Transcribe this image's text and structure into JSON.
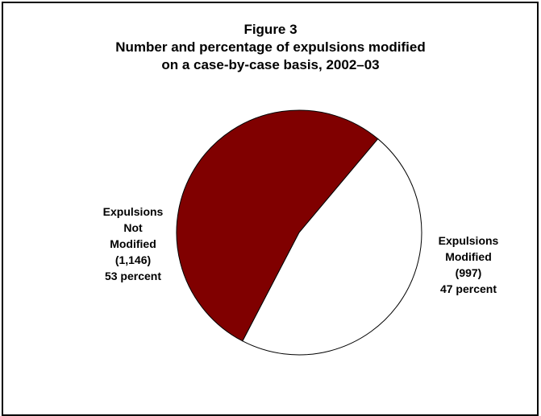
{
  "chart_data": {
    "type": "pie",
    "title_lines": [
      "Figure 3",
      "Number and percentage of expulsions modified",
      "on a case-by-case basis, 2002–03"
    ],
    "slices": [
      {
        "label_lines": [
          "Expulsions",
          "Not",
          "Modified",
          "(1,146)",
          "53 percent"
        ],
        "count": 1146,
        "percent": 53,
        "color": "#800000"
      },
      {
        "label_lines": [
          "Expulsions",
          "Modified",
          "(997)",
          "47 percent"
        ],
        "count": 997,
        "percent": 47,
        "color": "#ffffff"
      }
    ]
  }
}
